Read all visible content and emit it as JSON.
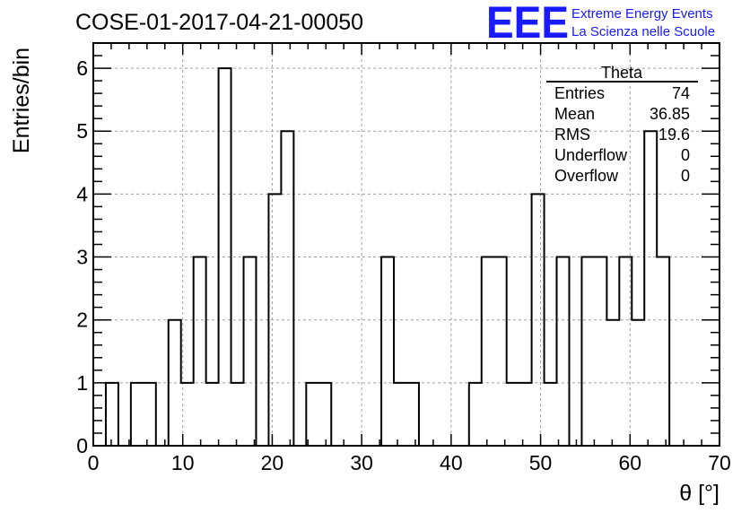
{
  "header": {
    "title": "COSE-01-2017-04-21-00050",
    "logo_text": "EEE",
    "logo_line1": "Extreme Energy Events",
    "logo_line2": "La Scienza nelle Scuole",
    "logo_color": "#1a1aff"
  },
  "stats_box": {
    "title": "Theta",
    "rows": [
      {
        "label": "Entries",
        "value": "74"
      },
      {
        "label": "Mean",
        "value": "36.85"
      },
      {
        "label": "RMS",
        "value": "19.6"
      },
      {
        "label": "Underflow",
        "value": "0"
      },
      {
        "label": "Overflow",
        "value": "0"
      }
    ]
  },
  "chart_data": {
    "type": "bar",
    "histogram": true,
    "title": "COSE-01-2017-04-21-00050",
    "xlabel": "θ [°]",
    "ylabel": "Entries/bin",
    "xlim": [
      0,
      70
    ],
    "ylim": [
      0,
      6.4
    ],
    "x_ticks": [
      0,
      10,
      20,
      30,
      40,
      50,
      60,
      70
    ],
    "y_ticks": [
      0,
      1,
      2,
      3,
      4,
      5,
      6
    ],
    "grid": true,
    "bin_edges": [
      1.4,
      2.8,
      4.2,
      5.6,
      7.0,
      8.4,
      9.8,
      11.2,
      12.6,
      14.0,
      15.4,
      16.8,
      18.2,
      19.6,
      21.0,
      22.4,
      23.8,
      25.2,
      26.6,
      28.0,
      29.4,
      30.8,
      32.2,
      33.6,
      35.0,
      36.4,
      37.8,
      39.2,
      40.6,
      42.0,
      43.4,
      44.8,
      46.2,
      47.6,
      49.0,
      50.4,
      51.8,
      53.2,
      54.6,
      56.0,
      57.4,
      58.8,
      60.2,
      61.6,
      63.0,
      64.4
    ],
    "values": [
      1,
      0,
      1,
      1,
      0,
      2,
      1,
      3,
      1,
      6,
      1,
      3,
      0,
      4,
      5,
      0,
      1,
      1,
      0,
      0,
      0,
      0,
      3,
      1,
      1,
      0,
      0,
      0,
      0,
      1,
      3,
      3,
      1,
      1,
      4,
      1,
      3,
      0,
      3,
      3,
      2,
      3,
      2,
      5,
      3
    ]
  }
}
